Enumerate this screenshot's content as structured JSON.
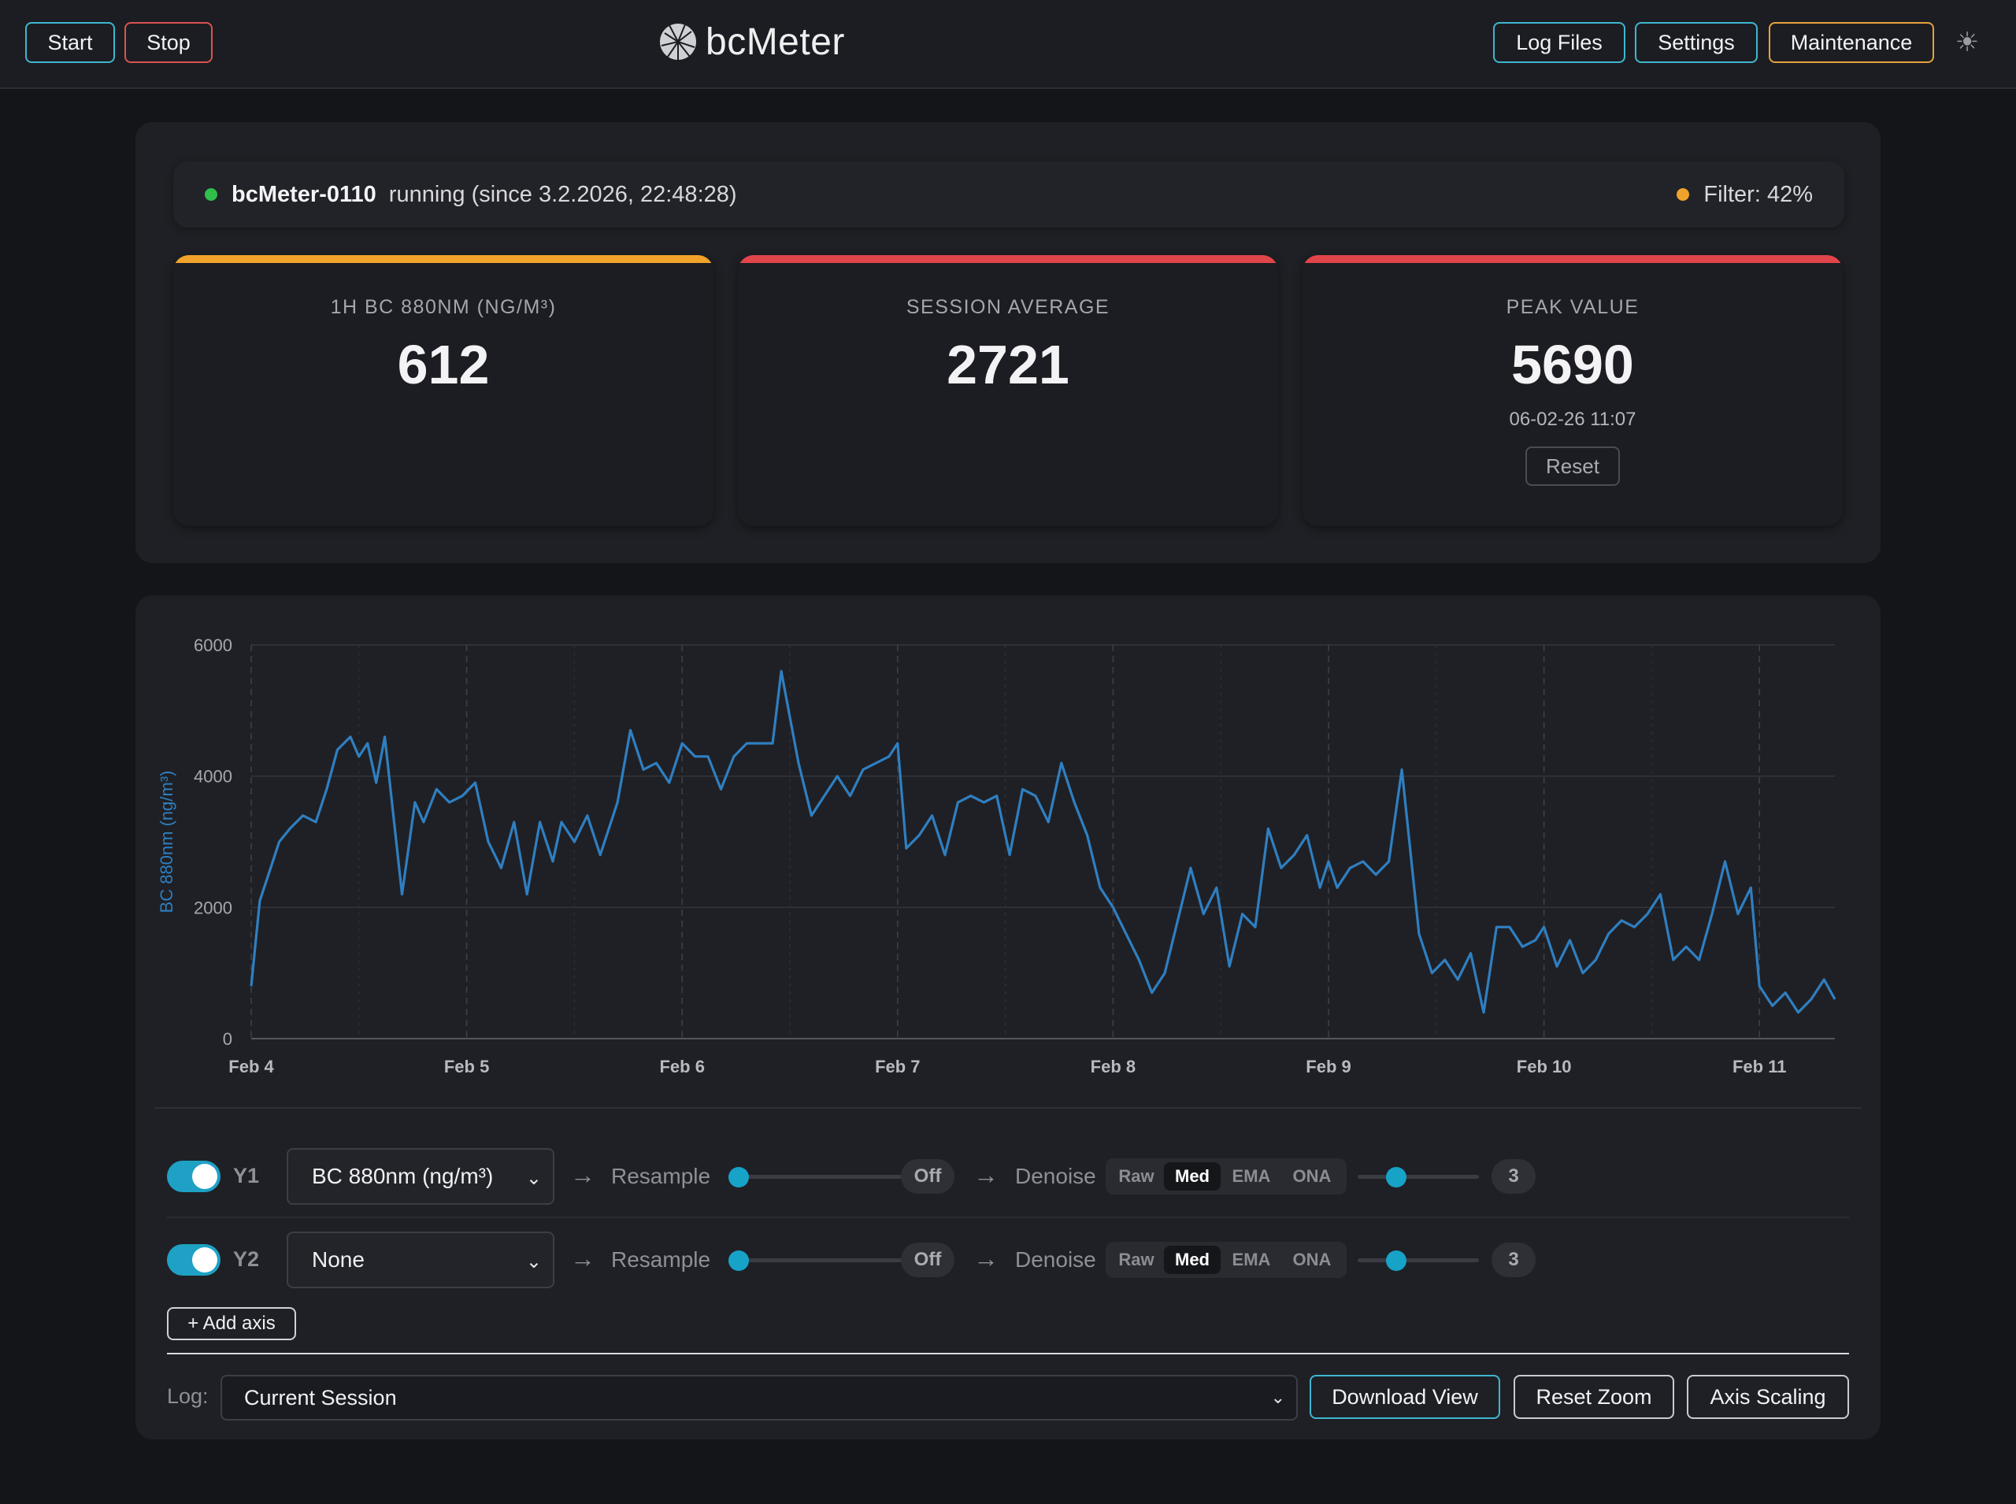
{
  "topbar": {
    "start_label": "Start",
    "stop_label": "Stop",
    "app_name": "bcMeter",
    "log_files_label": "Log Files",
    "settings_label": "Settings",
    "maintenance_label": "Maintenance",
    "theme_icon": "sun-icon"
  },
  "status": {
    "device_name": "bcMeter-0110",
    "state": "running (since 3.2.2026, 22:48:28)",
    "filter_label": "Filter: 42%",
    "running_color": "#2fbf4a",
    "filter_color": "#f0a32a"
  },
  "cards": [
    {
      "label": "1H BC 880NM (NG/M³)",
      "value": "612",
      "accent": "#f0a32a"
    },
    {
      "label": "SESSION AVERAGE",
      "value": "2721",
      "accent": "#e0454a"
    },
    {
      "label": "PEAK VALUE",
      "value": "5690",
      "timestamp": "06-02-26 11:07",
      "reset_label": "Reset",
      "accent": "#e0454a"
    }
  ],
  "chart_data": {
    "type": "line",
    "ylabel": "BC 880nm (ng/m³)",
    "ylim": [
      0,
      6000
    ],
    "yticks": [
      "0",
      "2000",
      "4000",
      "6000"
    ],
    "xticks": [
      "Feb 4",
      "Feb 5",
      "Feb 6",
      "Feb 7",
      "Feb 8",
      "Feb 9",
      "Feb 10",
      "Feb 11"
    ],
    "xlim": [
      0,
      7.35
    ],
    "line_color": "#2f7fc1",
    "grid": true,
    "x": [
      0,
      0.04,
      0.08,
      0.13,
      0.18,
      0.24,
      0.3,
      0.35,
      0.4,
      0.46,
      0.5,
      0.54,
      0.58,
      0.62,
      0.7,
      0.76,
      0.8,
      0.86,
      0.92,
      0.98,
      1.04,
      1.1,
      1.16,
      1.22,
      1.28,
      1.34,
      1.4,
      1.44,
      1.5,
      1.56,
      1.62,
      1.7,
      1.76,
      1.82,
      1.88,
      1.94,
      2.0,
      2.06,
      2.12,
      2.18,
      2.24,
      2.3,
      2.36,
      2.42,
      2.46,
      2.5,
      2.54,
      2.6,
      2.66,
      2.72,
      2.78,
      2.84,
      2.9,
      2.96,
      3.0,
      3.04,
      3.1,
      3.16,
      3.22,
      3.28,
      3.34,
      3.4,
      3.46,
      3.52,
      3.58,
      3.64,
      3.7,
      3.76,
      3.82,
      3.88,
      3.94,
      4.0,
      4.06,
      4.12,
      4.18,
      4.24,
      4.3,
      4.36,
      4.42,
      4.48,
      4.54,
      4.6,
      4.66,
      4.72,
      4.78,
      4.84,
      4.9,
      4.96,
      5.0,
      5.04,
      5.1,
      5.16,
      5.22,
      5.28,
      5.34,
      5.42,
      5.48,
      5.54,
      5.6,
      5.66,
      5.72,
      5.78,
      5.84,
      5.9,
      5.96,
      6.0,
      6.06,
      6.12,
      6.18,
      6.24,
      6.3,
      6.36,
      6.42,
      6.48,
      6.54,
      6.6,
      6.66,
      6.72,
      6.78,
      6.84,
      6.9,
      6.96,
      7.0,
      7.06,
      7.12,
      7.18,
      7.24,
      7.3,
      7.35
    ],
    "series": [
      {
        "values": [
          800,
          2100,
          2500,
          3000,
          3200,
          3400,
          3300,
          3800,
          4400,
          4600,
          4300,
          4500,
          3900,
          4600,
          2200,
          3600,
          3300,
          3800,
          3600,
          3700,
          3900,
          3000,
          2600,
          3300,
          2200,
          3300,
          2700,
          3300,
          3000,
          3400,
          2800,
          3600,
          4700,
          4100,
          4200,
          3900,
          4500,
          4300,
          4300,
          3800,
          4300,
          4500,
          4500,
          4500,
          5600,
          4900,
          4200,
          3400,
          3700,
          4000,
          3700,
          4100,
          4200,
          4300,
          4500,
          2900,
          3100,
          3400,
          2800,
          3600,
          3700,
          3600,
          3700,
          2800,
          3800,
          3700,
          3300,
          4200,
          3600,
          3100,
          2300,
          2000,
          1600,
          1200,
          700,
          1000,
          1800,
          2600,
          1900,
          2300,
          1100,
          1900,
          1700,
          3200,
          2600,
          2800,
          3100,
          2300,
          2700,
          2300,
          2600,
          2700,
          2500,
          2700,
          4100,
          1600,
          1000,
          1200,
          900,
          1300,
          400,
          1700,
          1700,
          1400,
          1500,
          1700,
          1100,
          1500,
          1000,
          1200,
          1600,
          1800,
          1700,
          1900,
          2200,
          1200,
          1400,
          1200,
          1900,
          2700,
          1900,
          2300,
          800,
          500,
          700,
          400,
          600,
          900,
          600
        ]
      }
    ]
  },
  "controls": {
    "axes": [
      {
        "axis": "Y1",
        "enabled": true,
        "metric": "BC 880nm (ng/m³)",
        "resample_label": "Resample",
        "resample_value": "Off",
        "resample_level": 0,
        "denoise_label": "Denoise",
        "modes": [
          "Raw",
          "Med",
          "EMA",
          "ONA"
        ],
        "active_mode": "Med",
        "denoise_value": "3"
      },
      {
        "axis": "Y2",
        "enabled": true,
        "metric": "None",
        "resample_label": "Resample",
        "resample_value": "Off",
        "resample_level": 0,
        "denoise_label": "Denoise",
        "modes": [
          "Raw",
          "Med",
          "EMA",
          "ONA"
        ],
        "active_mode": "Med",
        "denoise_value": "3"
      }
    ],
    "add_axis_label": "+ Add axis",
    "log_label": "Log:",
    "log_value": "Current Session",
    "download_label": "Download View",
    "reset_zoom_label": "Reset Zoom",
    "axis_scaling_label": "Axis Scaling"
  }
}
